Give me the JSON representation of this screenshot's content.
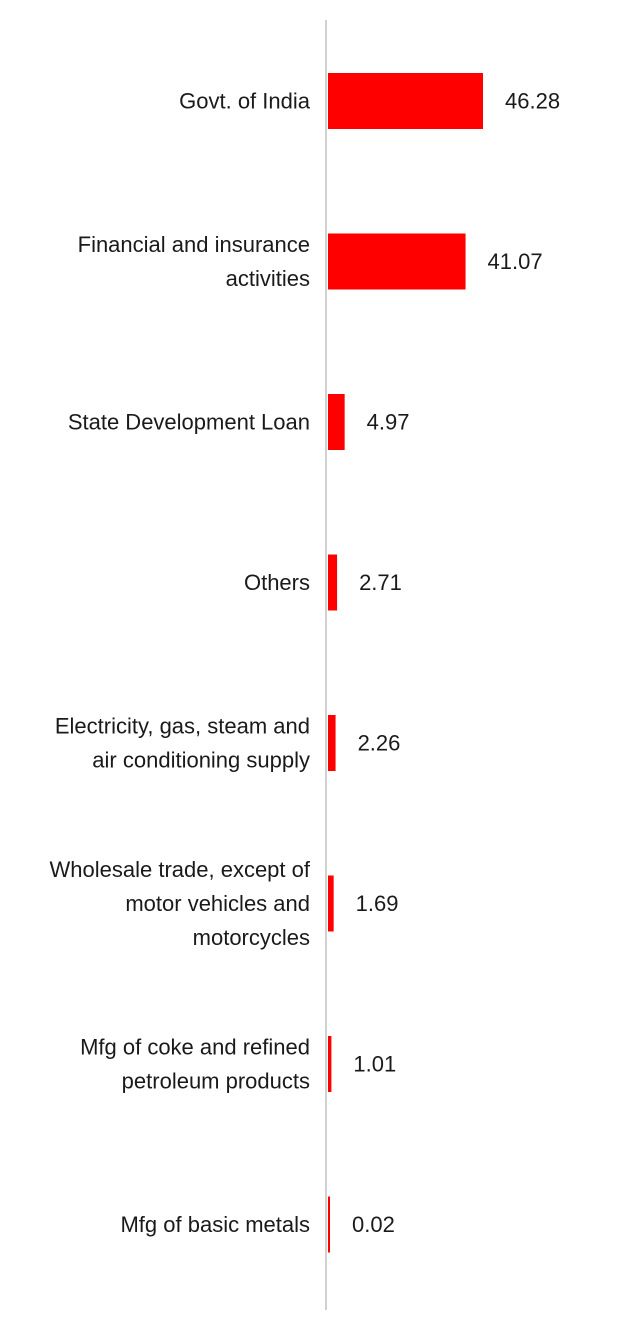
{
  "chart_data": {
    "type": "bar",
    "orientation": "horizontal",
    "title": "",
    "xlabel": "",
    "ylabel": "",
    "categories": [
      "Govt. of India",
      "Financial and insurance activities",
      "State Development Loan",
      "Others",
      "Electricity, gas, steam and air conditioning supply",
      "Wholesale trade, except of motor vehicles and motorcycles",
      "Mfg of coke and refined petroleum products",
      "Mfg of basic metals"
    ],
    "category_lines": [
      [
        "Govt. of India"
      ],
      [
        "Financial and insurance",
        "activities"
      ],
      [
        "State Development Loan"
      ],
      [
        "Others"
      ],
      [
        "Electricity, gas, steam and",
        "air conditioning supply"
      ],
      [
        "Wholesale trade, except of",
        "motor vehicles and",
        "motorcycles"
      ],
      [
        "Mfg of coke and refined",
        "petroleum products"
      ],
      [
        "Mfg of basic metals"
      ]
    ],
    "values": [
      46.28,
      41.07,
      4.97,
      2.71,
      2.26,
      1.69,
      1.01,
      0.02
    ],
    "value_labels": [
      "46.28",
      "41.07",
      "4.97",
      "2.71",
      "2.26",
      "1.69",
      "1.01",
      "0.02"
    ],
    "xlim": [
      0,
      50
    ],
    "grid": false,
    "legend": "none",
    "bar_color": "#ff0000",
    "axis_color": "#d0d0d0"
  }
}
